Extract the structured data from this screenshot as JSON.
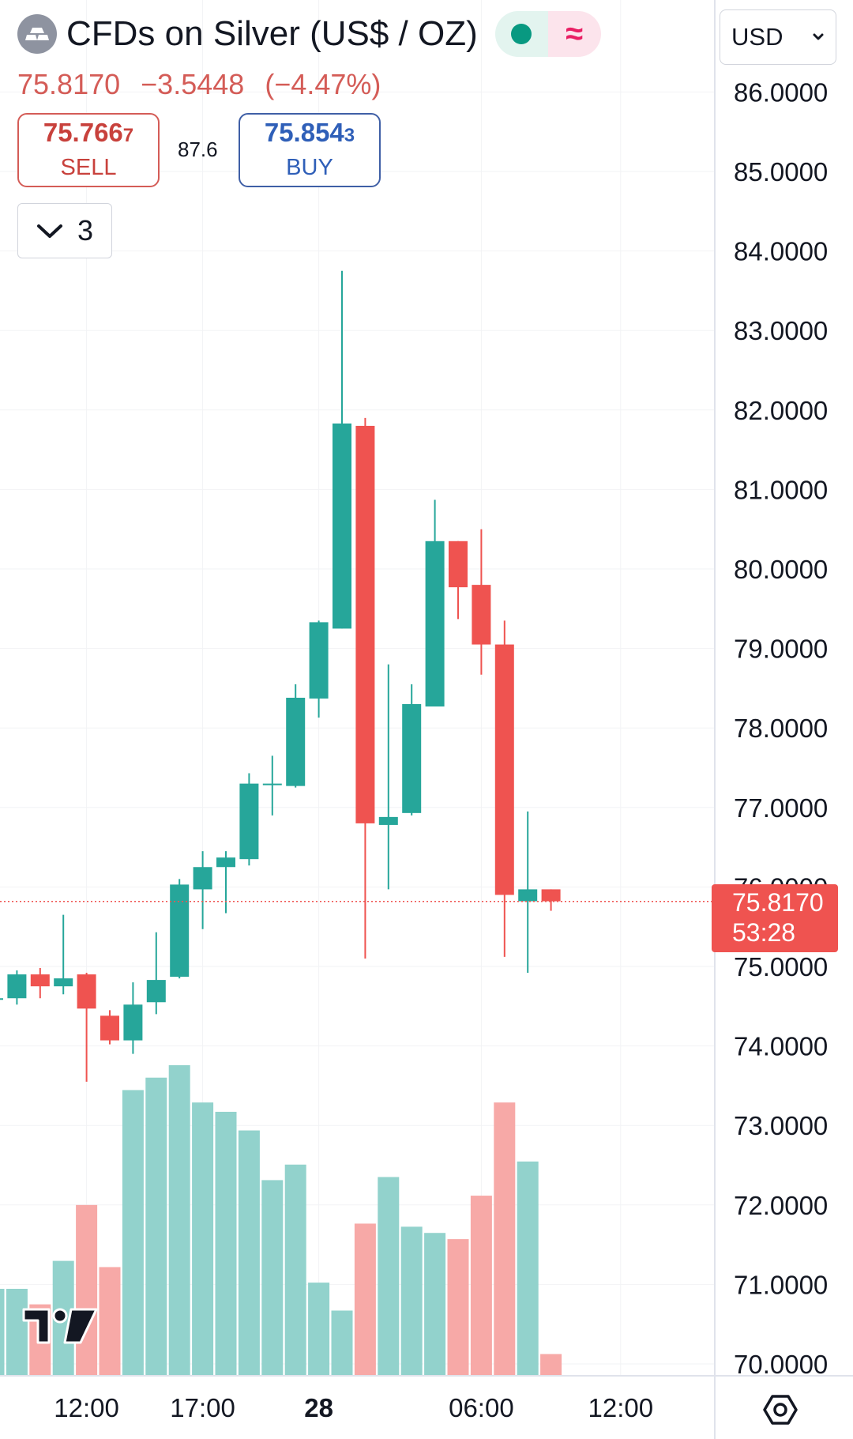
{
  "header": {
    "symbol_title": "CFDs on Silver (US$ / OZ)",
    "symbol_icon": "silver-bars-icon",
    "status_dot_color": "#089981",
    "status_wave_glyph": "≈",
    "status_wave_color": "#e91e63"
  },
  "price_line": {
    "last": "75.8170",
    "change": "−3.5448",
    "change_pct": "(−4.47%)",
    "color": "#d45c57"
  },
  "trade": {
    "sell_price_main": "75.766",
    "sell_price_last": "7",
    "sell_label": "SELL",
    "spread": "87.6",
    "buy_price_main": "75.854",
    "buy_price_last": "3",
    "buy_label": "BUY"
  },
  "indicators": {
    "count": "3",
    "icon": "chevron-down-icon"
  },
  "currency": {
    "label": "USD",
    "icon": "chevron-down-icon"
  },
  "last_tag": {
    "price": "75.8170",
    "countdown": "53:28",
    "color": "#ef5350"
  },
  "toolbar": {
    "settings_icon": "settings-hexagon-icon"
  },
  "chart_data": {
    "type": "candlestick",
    "title": "CFDs on Silver (US$ / OZ)",
    "y_axis": {
      "ticks": [
        "86.0000",
        "85.0000",
        "84.0000",
        "83.0000",
        "82.0000",
        "81.0000",
        "80.0000",
        "79.0000",
        "78.0000",
        "77.0000",
        "76.0000",
        "75.0000",
        "74.0000",
        "73.0000",
        "72.0000",
        "71.0000",
        "70.0000"
      ],
      "range": [
        70.0,
        86.0
      ],
      "position": "right"
    },
    "x_axis": {
      "ticks": [
        {
          "label": "12:00",
          "bar": 4,
          "bold": false
        },
        {
          "label": "17:00",
          "bar": 9,
          "bold": false
        },
        {
          "label": "28",
          "bar": 14,
          "bold": true
        },
        {
          "label": "06:00",
          "bar": 21,
          "bold": false
        },
        {
          "label": "12:00",
          "bar": 27,
          "bold": false
        }
      ]
    },
    "grid": true,
    "up_color": "#26a69a",
    "down_color": "#ef5350",
    "vol_up_color": "#92d2cc",
    "vol_down_color": "#f7a9a7",
    "last_price": 75.817,
    "candles": [
      {
        "o": 74.6,
        "h": 74.65,
        "l": 74.58,
        "c": 74.6
      },
      {
        "o": 74.6,
        "h": 74.95,
        "l": 74.52,
        "c": 74.9
      },
      {
        "o": 74.9,
        "h": 74.98,
        "l": 74.6,
        "c": 74.75
      },
      {
        "o": 74.75,
        "h": 75.65,
        "l": 74.65,
        "c": 74.85
      },
      {
        "o": 74.9,
        "h": 74.92,
        "l": 73.55,
        "c": 74.47
      },
      {
        "o": 74.38,
        "h": 74.45,
        "l": 74.02,
        "c": 74.07
      },
      {
        "o": 74.07,
        "h": 74.8,
        "l": 73.9,
        "c": 74.52
      },
      {
        "o": 74.55,
        "h": 75.43,
        "l": 74.4,
        "c": 74.83
      },
      {
        "o": 74.87,
        "h": 76.1,
        "l": 74.85,
        "c": 76.03
      },
      {
        "o": 75.97,
        "h": 76.45,
        "l": 75.47,
        "c": 76.25
      },
      {
        "o": 76.25,
        "h": 76.45,
        "l": 75.67,
        "c": 76.37
      },
      {
        "o": 76.35,
        "h": 77.43,
        "l": 76.27,
        "c": 77.3
      },
      {
        "o": 77.3,
        "h": 77.65,
        "l": 76.9,
        "c": 77.3
      },
      {
        "o": 77.27,
        "h": 78.55,
        "l": 77.25,
        "c": 78.38
      },
      {
        "o": 78.37,
        "h": 79.35,
        "l": 78.13,
        "c": 79.33
      },
      {
        "o": 79.25,
        "h": 83.75,
        "l": 79.25,
        "c": 81.83
      },
      {
        "o": 81.8,
        "h": 81.9,
        "l": 75.1,
        "c": 76.8
      },
      {
        "o": 76.78,
        "h": 78.8,
        "l": 75.97,
        "c": 76.88
      },
      {
        "o": 76.93,
        "h": 78.55,
        "l": 76.9,
        "c": 78.3
      },
      {
        "o": 78.27,
        "h": 80.87,
        "l": 78.27,
        "c": 80.35
      },
      {
        "o": 80.35,
        "h": 80.35,
        "l": 79.37,
        "c": 79.77
      },
      {
        "o": 79.8,
        "h": 80.5,
        "l": 78.67,
        "c": 79.05
      },
      {
        "o": 79.05,
        "h": 79.35,
        "l": 75.12,
        "c": 75.9
      },
      {
        "o": 75.82,
        "h": 76.95,
        "l": 74.92,
        "c": 75.97
      },
      {
        "o": 75.97,
        "h": 75.97,
        "l": 75.7,
        "c": 75.82
      }
    ],
    "volume_relative": [
      0.28,
      0.28,
      0.23,
      0.37,
      0.55,
      0.35,
      0.92,
      0.96,
      1.0,
      0.88,
      0.85,
      0.79,
      0.63,
      0.68,
      0.3,
      0.21,
      0.49,
      0.64,
      0.48,
      0.46,
      0.44,
      0.58,
      0.88,
      0.69,
      0.07
    ]
  }
}
